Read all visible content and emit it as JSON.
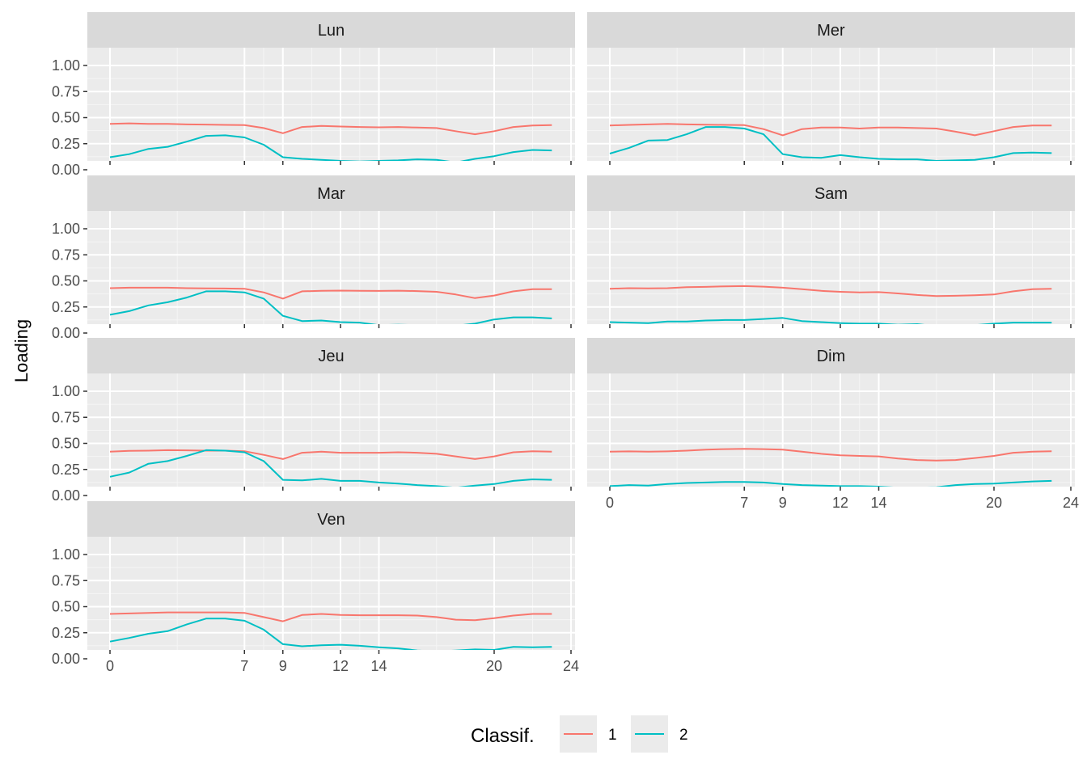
{
  "chart_data": {
    "type": "line",
    "ylabel": "Loading",
    "xlabel": "",
    "x_breaks": [
      0,
      7,
      9,
      12,
      14,
      20,
      24
    ],
    "y_breaks": [
      0,
      0.25,
      0.5,
      0.75,
      1.0
    ],
    "y_break_labels": [
      "0.00",
      "0.25",
      "0.50",
      "0.75",
      "1.00"
    ],
    "xlim": [
      0,
      24
    ],
    "ylim": [
      0,
      1
    ],
    "grid": true,
    "legend": {
      "title": "Classif.",
      "position": "bottom",
      "entries": [
        {
          "label": "1",
          "color": "#F8766D"
        },
        {
          "label": "2",
          "color": "#00BFC4"
        }
      ]
    },
    "x": [
      0,
      1,
      2,
      3,
      4,
      5,
      6,
      7,
      8,
      9,
      10,
      11,
      12,
      13,
      14,
      15,
      16,
      17,
      18,
      19,
      20,
      21,
      22,
      23
    ],
    "panels": [
      {
        "title": "Lun",
        "series": [
          {
            "name": "1",
            "values": [
              0.44,
              0.445,
              0.44,
              0.44,
              0.435,
              0.433,
              0.43,
              0.428,
              0.4,
              0.35,
              0.41,
              0.42,
              0.415,
              0.41,
              0.407,
              0.41,
              0.405,
              0.4,
              0.37,
              0.34,
              0.37,
              0.41,
              0.425,
              0.428
            ]
          },
          {
            "name": "2",
            "values": [
              0.12,
              0.15,
              0.2,
              0.22,
              0.27,
              0.325,
              0.33,
              0.31,
              0.24,
              0.12,
              0.105,
              0.095,
              0.085,
              0.08,
              0.085,
              0.09,
              0.1,
              0.095,
              0.07,
              0.105,
              0.13,
              0.17,
              0.19,
              0.185
            ]
          }
        ]
      },
      {
        "title": "Mer",
        "series": [
          {
            "name": "1",
            "values": [
              0.425,
              0.43,
              0.435,
              0.44,
              0.435,
              0.432,
              0.43,
              0.428,
              0.39,
              0.33,
              0.39,
              0.405,
              0.405,
              0.395,
              0.405,
              0.405,
              0.4,
              0.395,
              0.365,
              0.33,
              0.37,
              0.41,
              0.425,
              0.425
            ]
          },
          {
            "name": "2",
            "values": [
              0.155,
              0.21,
              0.28,
              0.285,
              0.34,
              0.41,
              0.41,
              0.395,
              0.34,
              0.15,
              0.12,
              0.115,
              0.14,
              0.12,
              0.105,
              0.1,
              0.1,
              0.085,
              0.09,
              0.095,
              0.12,
              0.16,
              0.165,
              0.16
            ]
          }
        ]
      },
      {
        "title": "Mar",
        "series": [
          {
            "name": "1",
            "values": [
              0.43,
              0.435,
              0.435,
              0.435,
              0.43,
              0.428,
              0.427,
              0.425,
              0.39,
              0.33,
              0.4,
              0.405,
              0.407,
              0.405,
              0.404,
              0.406,
              0.402,
              0.395,
              0.37,
              0.335,
              0.36,
              0.4,
              0.42,
              0.42
            ]
          },
          {
            "name": "2",
            "values": [
              0.175,
              0.21,
              0.265,
              0.295,
              0.34,
              0.4,
              0.4,
              0.39,
              0.33,
              0.165,
              0.115,
              0.12,
              0.105,
              0.1,
              0.075,
              0.08,
              0.075,
              0.075,
              0.07,
              0.09,
              0.13,
              0.15,
              0.15,
              0.14
            ]
          }
        ]
      },
      {
        "title": "Sam",
        "series": [
          {
            "name": "1",
            "values": [
              0.425,
              0.43,
              0.428,
              0.43,
              0.44,
              0.443,
              0.448,
              0.45,
              0.445,
              0.435,
              0.42,
              0.405,
              0.395,
              0.39,
              0.392,
              0.38,
              0.365,
              0.355,
              0.357,
              0.362,
              0.37,
              0.4,
              0.42,
              0.425
            ]
          },
          {
            "name": "2",
            "values": [
              0.105,
              0.1,
              0.095,
              0.11,
              0.11,
              0.12,
              0.125,
              0.125,
              0.135,
              0.145,
              0.115,
              0.105,
              0.095,
              0.09,
              0.09,
              0.08,
              0.085,
              0.065,
              0.06,
              0.075,
              0.09,
              0.1,
              0.1,
              0.1
            ]
          }
        ]
      },
      {
        "title": "Jeu",
        "series": [
          {
            "name": "1",
            "values": [
              0.42,
              0.428,
              0.43,
              0.435,
              0.433,
              0.43,
              0.43,
              0.425,
              0.39,
              0.35,
              0.41,
              0.42,
              0.41,
              0.41,
              0.41,
              0.415,
              0.41,
              0.4,
              0.375,
              0.35,
              0.375,
              0.415,
              0.425,
              0.42
            ]
          },
          {
            "name": "2",
            "values": [
              0.18,
              0.22,
              0.305,
              0.33,
              0.38,
              0.435,
              0.43,
              0.415,
              0.33,
              0.15,
              0.145,
              0.16,
              0.14,
              0.14,
              0.125,
              0.115,
              0.1,
              0.09,
              0.075,
              0.095,
              0.11,
              0.14,
              0.155,
              0.15
            ]
          }
        ]
      },
      {
        "title": "Dim",
        "series": [
          {
            "name": "1",
            "values": [
              0.42,
              0.423,
              0.42,
              0.423,
              0.43,
              0.44,
              0.445,
              0.448,
              0.445,
              0.44,
              0.42,
              0.4,
              0.385,
              0.38,
              0.375,
              0.355,
              0.34,
              0.335,
              0.34,
              0.36,
              0.38,
              0.41,
              0.42,
              0.425
            ]
          },
          {
            "name": "2",
            "values": [
              0.09,
              0.1,
              0.095,
              0.11,
              0.12,
              0.125,
              0.13,
              0.13,
              0.125,
              0.11,
              0.1,
              0.095,
              0.09,
              0.09,
              0.085,
              0.075,
              0.075,
              0.08,
              0.1,
              0.11,
              0.115,
              0.125,
              0.135,
              0.14
            ]
          }
        ]
      },
      {
        "title": "Ven",
        "series": [
          {
            "name": "1",
            "values": [
              0.43,
              0.435,
              0.44,
              0.445,
              0.445,
              0.445,
              0.445,
              0.44,
              0.4,
              0.36,
              0.42,
              0.43,
              0.42,
              0.418,
              0.418,
              0.418,
              0.415,
              0.4,
              0.375,
              0.37,
              0.39,
              0.415,
              0.43,
              0.43
            ]
          },
          {
            "name": "2",
            "values": [
              0.165,
              0.2,
              0.24,
              0.265,
              0.33,
              0.385,
              0.385,
              0.365,
              0.28,
              0.14,
              0.12,
              0.13,
              0.135,
              0.125,
              0.11,
              0.1,
              0.08,
              0.07,
              0.08,
              0.09,
              0.085,
              0.115,
              0.11,
              0.115
            ]
          }
        ]
      }
    ]
  }
}
